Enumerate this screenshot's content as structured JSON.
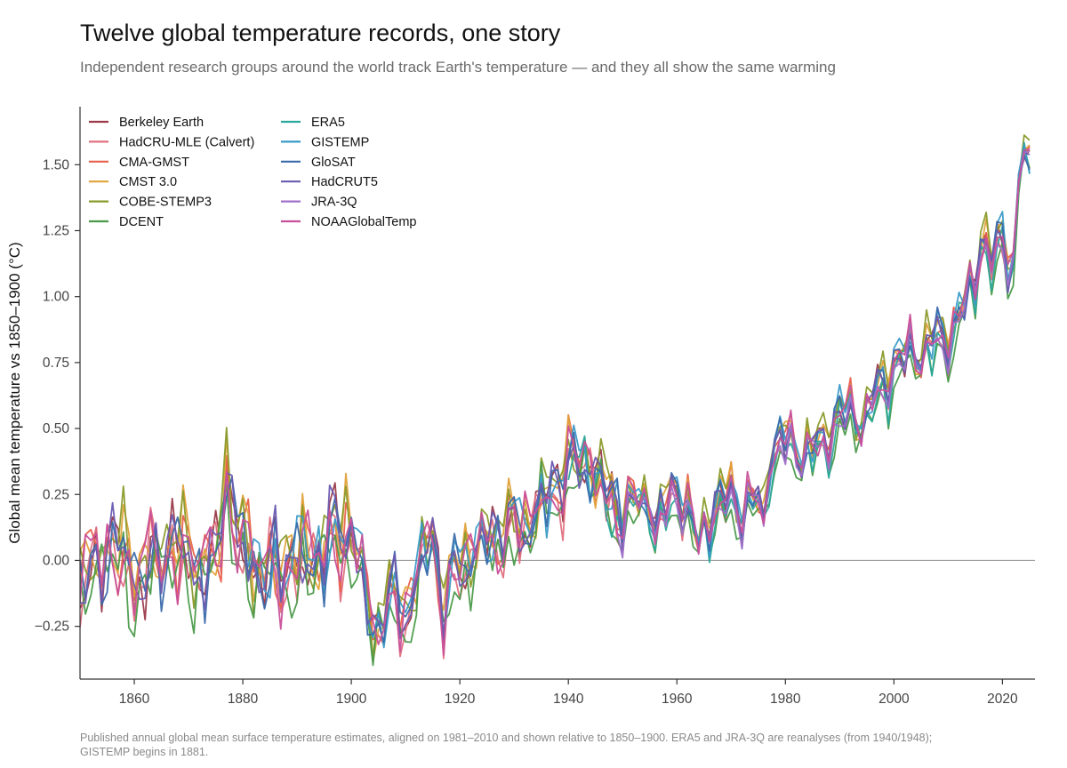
{
  "chart_data": {
    "type": "line",
    "title": "Twelve global temperature records, one story",
    "subtitle": "Independent research groups around the world track Earth's temperature — and they all show the same warming",
    "ylabel": "Global mean temperature vs 1850–1900 (°C)",
    "xlabel": "",
    "xlim": [
      1850,
      2026
    ],
    "ylim": [
      -0.45,
      1.72
    ],
    "x_ticks": [
      1860,
      1880,
      1900,
      1920,
      1940,
      1960,
      1980,
      2000,
      2020
    ],
    "x_tick_labels": [
      "1860",
      "1880",
      "1900",
      "1920",
      "1940",
      "1960",
      "1980",
      "2000",
      "2020"
    ],
    "y_ticks": [
      -0.25,
      0.0,
      0.25,
      0.5,
      0.75,
      1.0,
      1.25,
      1.5
    ],
    "y_tick_labels": [
      "−0.25",
      "0.00",
      "0.25",
      "0.50",
      "0.75",
      "1.00",
      "1.25",
      "1.50"
    ],
    "zero_line": true,
    "grid": false,
    "legend_position": "top-left",
    "reference": {
      "x": [
        1850,
        1855,
        1860,
        1865,
        1870,
        1875,
        1877,
        1878,
        1880,
        1885,
        1890,
        1895,
        1900,
        1904,
        1908,
        1910,
        1915,
        1917,
        1920,
        1925,
        1930,
        1935,
        1940,
        1944,
        1945,
        1950,
        1955,
        1956,
        1960,
        1964,
        1965,
        1970,
        1972,
        1975,
        1976,
        1977,
        1980,
        1985,
        1990,
        1995,
        2000,
        2005,
        2010,
        2015,
        2016,
        2017,
        2018,
        2020,
        2022,
        2023,
        2024,
        2025
      ],
      "y": [
        -0.08,
        0.05,
        -0.05,
        0.03,
        0.02,
        -0.03,
        0.35,
        0.15,
        0.05,
        -0.05,
        0.0,
        0.05,
        0.12,
        -0.25,
        -0.15,
        -0.2,
        0.12,
        -0.2,
        0.0,
        0.08,
        0.12,
        0.2,
        0.35,
        0.4,
        0.3,
        0.18,
        0.25,
        0.1,
        0.3,
        0.05,
        0.15,
        0.25,
        0.2,
        0.22,
        0.15,
        0.4,
        0.45,
        0.4,
        0.55,
        0.55,
        0.75,
        0.8,
        0.85,
        1.05,
        1.25,
        1.2,
        1.12,
        1.22,
        1.12,
        1.45,
        1.55,
        1.44
      ]
    },
    "series": [
      {
        "name": "Berkeley Earth",
        "color": "#9a3a4a",
        "offset": 0.0,
        "phase": 0.3,
        "start": 1850
      },
      {
        "name": "HadCRU-MLE (Calvert)",
        "color": "#e07080",
        "offset": -0.02,
        "phase": 1.1,
        "start": 1850
      },
      {
        "name": "CMA-GMST",
        "color": "#e8604a",
        "offset": 0.01,
        "phase": 2.0,
        "start": 1850
      },
      {
        "name": "CMST 3.0",
        "color": "#e0a23a",
        "offset": 0.02,
        "phase": 2.7,
        "start": 1850
      },
      {
        "name": "COBE-STEMP3",
        "color": "#8a9a2a",
        "offset": 0.03,
        "phase": 3.4,
        "start": 1850
      },
      {
        "name": "DCENT",
        "color": "#4a9a4a",
        "offset": -0.06,
        "phase": 4.1,
        "start": 1850
      },
      {
        "name": "ERA5",
        "color": "#2aa89a",
        "offset": -0.03,
        "phase": 4.8,
        "start": 1940
      },
      {
        "name": "GISTEMP",
        "color": "#3a9ac8",
        "offset": 0.01,
        "phase": 5.5,
        "start": 1881
      },
      {
        "name": "GloSAT",
        "color": "#3a6aaa",
        "offset": 0.0,
        "phase": 6.2,
        "start": 1850
      },
      {
        "name": "HadCRUT5",
        "color": "#6a5ab0",
        "offset": 0.0,
        "phase": 6.9,
        "start": 1850
      },
      {
        "name": "JRA-3Q",
        "color": "#a070c8",
        "offset": -0.02,
        "phase": 7.6,
        "start": 1948
      },
      {
        "name": "NOAAGlobalTemp",
        "color": "#c8509a",
        "offset": 0.0,
        "phase": 8.3,
        "start": 1850
      }
    ]
  },
  "footnote": "Published annual global mean surface temperature estimates, aligned on 1981–2010 and shown relative to 1850–1900. ERA5 and JRA-3Q are reanalyses (from 1940/1948); GISTEMP begins in 1881."
}
